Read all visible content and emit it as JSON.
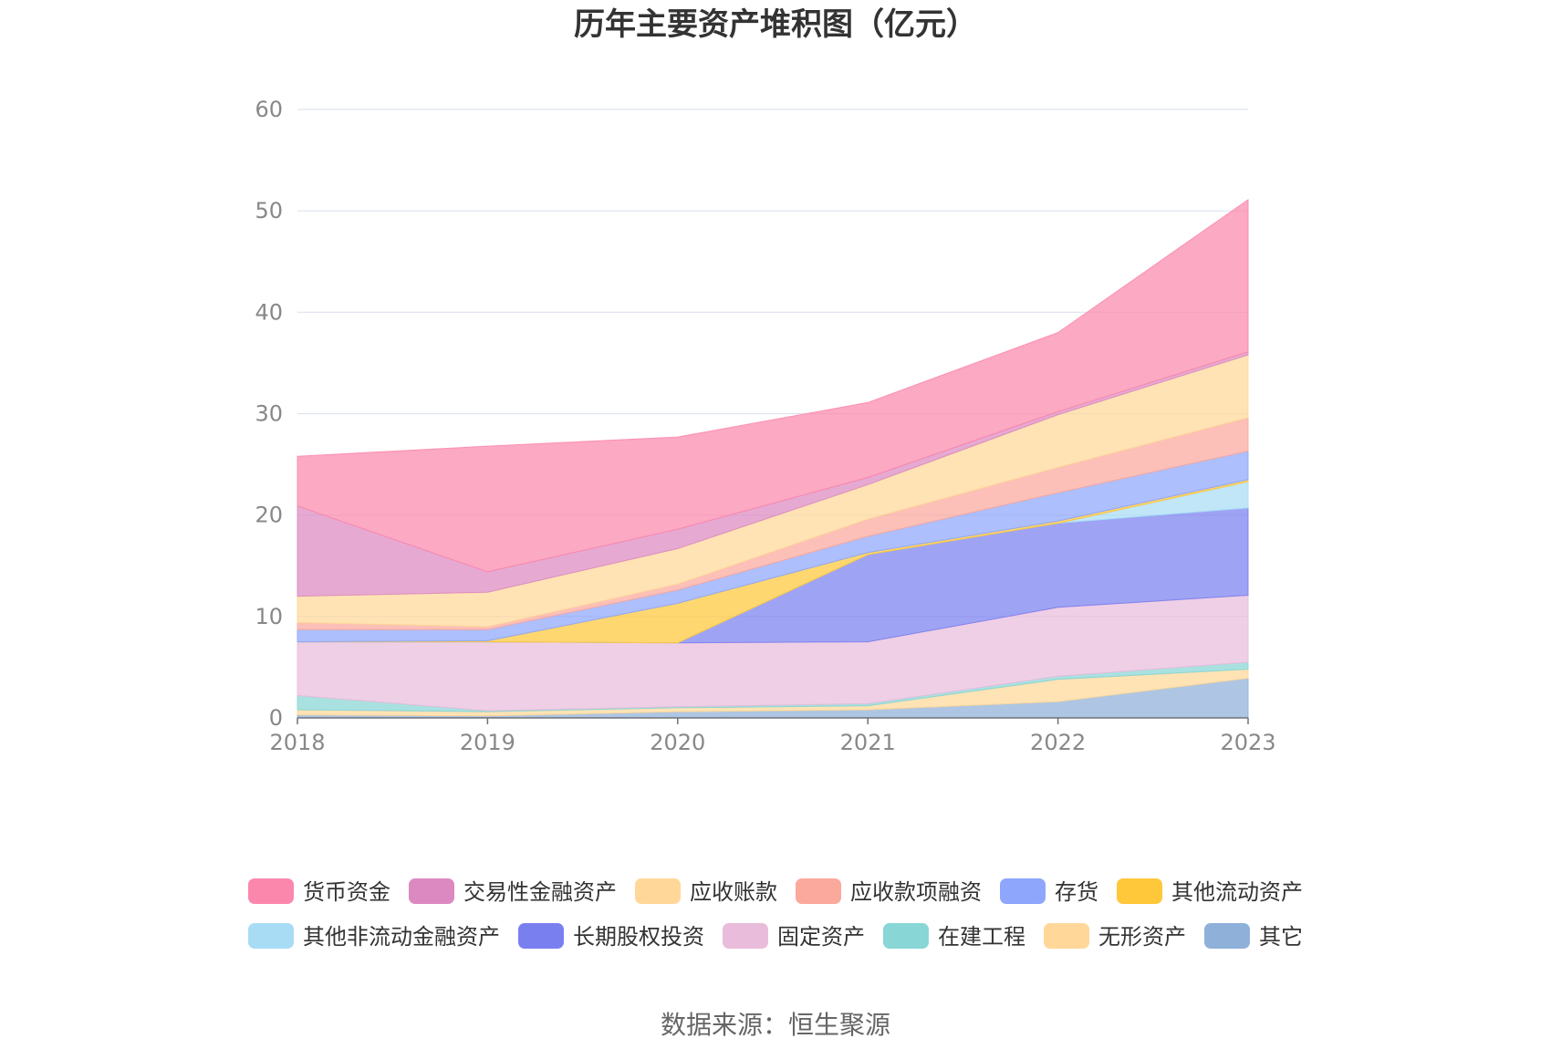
{
  "chart_data": {
    "type": "area",
    "stacked": true,
    "title": "历年主要资产堆积图（亿元）",
    "xlabel": "",
    "ylabel": "",
    "x": [
      "2018",
      "2019",
      "2020",
      "2021",
      "2022",
      "2023"
    ],
    "ylim": [
      0,
      60
    ],
    "yticks": [
      "0",
      "10",
      "20",
      "30",
      "40",
      "50",
      "60"
    ],
    "grid": true,
    "legend_position": "bottom",
    "series": [
      {
        "name": "其它",
        "color": "#8fb0d9",
        "values": [
          0.3,
          0.2,
          0.6,
          0.8,
          1.6,
          3.9
        ]
      },
      {
        "name": "无形资产",
        "color": "#ffd899",
        "values": [
          0.5,
          0.4,
          0.4,
          0.4,
          2.2,
          0.9
        ]
      },
      {
        "name": "在建工程",
        "color": "#88d6d6",
        "values": [
          1.4,
          0.1,
          0.1,
          0.2,
          0.3,
          0.7
        ]
      },
      {
        "name": "固定资产",
        "color": "#e9bcdb",
        "values": [
          5.3,
          6.8,
          6.3,
          6.1,
          6.8,
          6.6
        ]
      },
      {
        "name": "长期股权投资",
        "color": "#7a7ff0",
        "values": [
          0,
          0,
          0,
          8.6,
          8.3,
          8.6
        ]
      },
      {
        "name": "其他非流动金融资产",
        "color": "#a8dcf5",
        "values": [
          0,
          0,
          0,
          0,
          0,
          2.6
        ]
      },
      {
        "name": "其他流动资产",
        "color": "#ffc73a",
        "values": [
          0,
          0.1,
          3.9,
          0.2,
          0.2,
          0.2
        ]
      },
      {
        "name": "存货",
        "color": "#8ea6fb",
        "values": [
          1.2,
          1.1,
          1.3,
          1.6,
          2.8,
          2.8
        ]
      },
      {
        "name": "应收款项融资",
        "color": "#fba89d",
        "values": [
          0.7,
          0.3,
          0.6,
          1.7,
          2.5,
          3.3
        ]
      },
      {
        "name": "应收账款",
        "color": "#ffd899",
        "values": [
          2.6,
          3.4,
          3.5,
          3.4,
          5.2,
          6.2
        ]
      },
      {
        "name": "交易性金融资产",
        "color": "#dc89c1",
        "values": [
          8.9,
          2.0,
          1.9,
          0.7,
          0.3,
          0.3
        ]
      },
      {
        "name": "货币资金",
        "color": "#fb88ac",
        "values": [
          4.9,
          12.4,
          9.1,
          7.4,
          7.8,
          15.0
        ]
      }
    ],
    "legend_order": [
      "货币资金",
      "交易性金融资产",
      "应收账款",
      "应收款项融资",
      "存货",
      "其他流动资产",
      "其他非流动金融资产",
      "长期股权投资",
      "固定资产",
      "在建工程",
      "无形资产",
      "其它"
    ]
  },
  "source": "数据来源：恒生聚源"
}
